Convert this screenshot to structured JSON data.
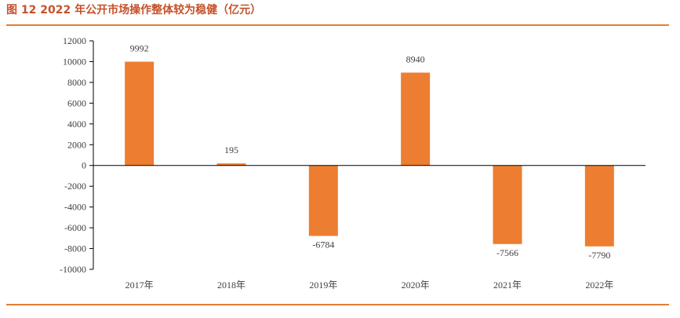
{
  "figure": {
    "title": "图 12   2022 年公开市场操作整体较为稳健（亿元）"
  },
  "colors": {
    "accent": "#C0504D",
    "title": "#C4522A",
    "rule": "#E57E33",
    "bar": "#ED7D31",
    "axis": "#000000",
    "text": "#404040"
  },
  "chart_data": {
    "type": "bar",
    "categories": [
      "2017年",
      "2018年",
      "2019年",
      "2020年",
      "2021年",
      "2022年"
    ],
    "values": [
      9992,
      195,
      -6784,
      8940,
      -7566,
      -7790
    ],
    "data_labels": [
      "9992",
      "195",
      "-6784",
      "8940",
      "-7566",
      "-7790"
    ],
    "y_ticks": [
      12000,
      10000,
      8000,
      6000,
      4000,
      2000,
      0,
      -2000,
      -4000,
      -6000,
      -8000,
      -10000
    ],
    "ylim": [
      -10000,
      12000
    ],
    "title": "",
    "xlabel": "",
    "ylabel": "",
    "grid": false,
    "legend": "none"
  }
}
